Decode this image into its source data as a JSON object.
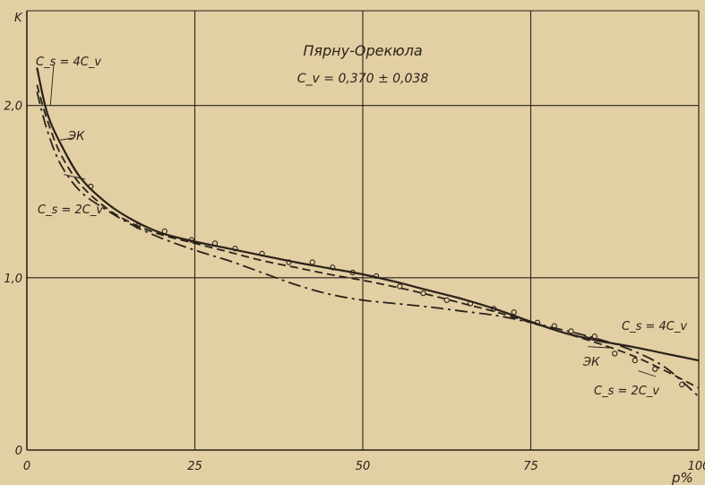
{
  "chart_data": {
    "type": "line",
    "title": "Пярну-Орекюла",
    "subtitle": "C_v = 0,370 ± 0,038",
    "xlabel": "p%",
    "ylabel": "K",
    "xlim": [
      0,
      100
    ],
    "ylim": [
      0,
      2.55
    ],
    "x_ticks": [
      0,
      25,
      50,
      75,
      100
    ],
    "x_tick_labels": [
      "0",
      "25",
      "50",
      "75",
      "100"
    ],
    "y_ticks": [
      0,
      1.0,
      2.0
    ],
    "y_tick_labels": [
      "0",
      "1,0",
      "2,0"
    ],
    "grid": true,
    "series": [
      {
        "name": "C_s = 4C_v",
        "style": "solid",
        "color": "#2a221a",
        "x": [
          1.5,
          3,
          5,
          8,
          12,
          16,
          20,
          25,
          30,
          35,
          40,
          45,
          50,
          55,
          60,
          65,
          70,
          75,
          80,
          85,
          90,
          95,
          100
        ],
        "y": [
          2.22,
          1.96,
          1.78,
          1.58,
          1.43,
          1.33,
          1.26,
          1.21,
          1.17,
          1.13,
          1.09,
          1.055,
          1.02,
          0.975,
          0.925,
          0.875,
          0.815,
          0.745,
          0.68,
          0.635,
          0.6,
          0.56,
          0.52
        ]
      },
      {
        "name": "ЭК",
        "style": "dashed",
        "color": "#2a221a",
        "x": [
          1.5,
          3,
          5,
          8,
          12,
          16,
          20,
          25,
          30,
          35,
          40,
          45,
          50,
          55,
          60,
          65,
          70,
          75,
          80,
          85,
          90,
          95,
          100
        ],
        "y": [
          2.12,
          1.92,
          1.72,
          1.54,
          1.4,
          1.31,
          1.25,
          1.2,
          1.15,
          1.1,
          1.06,
          1.02,
          0.985,
          0.945,
          0.9,
          0.85,
          0.8,
          0.74,
          0.68,
          0.62,
          0.55,
          0.46,
          0.36
        ]
      },
      {
        "name": "C_s = 2C_v",
        "style": "dashdot",
        "color": "#2a221a",
        "x": [
          1.5,
          3,
          5,
          8,
          12,
          16,
          20,
          25,
          30,
          35,
          40,
          45,
          50,
          55,
          60,
          65,
          70,
          75,
          80,
          85,
          90,
          95,
          100
        ],
        "y": [
          2.08,
          1.86,
          1.66,
          1.5,
          1.39,
          1.3,
          1.23,
          1.16,
          1.1,
          1.03,
          0.96,
          0.905,
          0.87,
          0.85,
          0.83,
          0.805,
          0.78,
          0.74,
          0.695,
          0.645,
          0.58,
          0.48,
          0.31
        ]
      }
    ],
    "observed_points": {
      "x": [
        9.5,
        16.5,
        20.5,
        24.5,
        28,
        31,
        35,
        39,
        42.5,
        45.5,
        48.5,
        52,
        55.5,
        59,
        62.5,
        66,
        69.5,
        72.5,
        76,
        78.5,
        81,
        84.5,
        87.5,
        90.5,
        93.5,
        97.5
      ],
      "y": [
        1.53,
        1.3,
        1.27,
        1.22,
        1.2,
        1.17,
        1.14,
        1.09,
        1.09,
        1.06,
        1.03,
        1.01,
        0.95,
        0.91,
        0.87,
        0.85,
        0.82,
        0.8,
        0.74,
        0.72,
        0.69,
        0.66,
        0.56,
        0.52,
        0.47,
        0.38
      ]
    },
    "annotations": [
      {
        "text": "C_s = 4C_v",
        "anchor_x": 3.5,
        "anchor_y": 2.0
      },
      {
        "text": "ЭК",
        "anchor_x": 5,
        "anchor_y": 1.8
      },
      {
        "text": "C_s = 2C_v",
        "anchor_x": 5.5,
        "anchor_y": 1.6
      },
      {
        "text": "C_s = 4C_v",
        "anchor_x": 83,
        "anchor_y": 0.66
      },
      {
        "text": "ЭК",
        "anchor_x": 83.5,
        "anchor_y": 0.6
      },
      {
        "text": "C_s = 2C_v",
        "anchor_x": 91,
        "anchor_y": 0.46
      }
    ]
  }
}
